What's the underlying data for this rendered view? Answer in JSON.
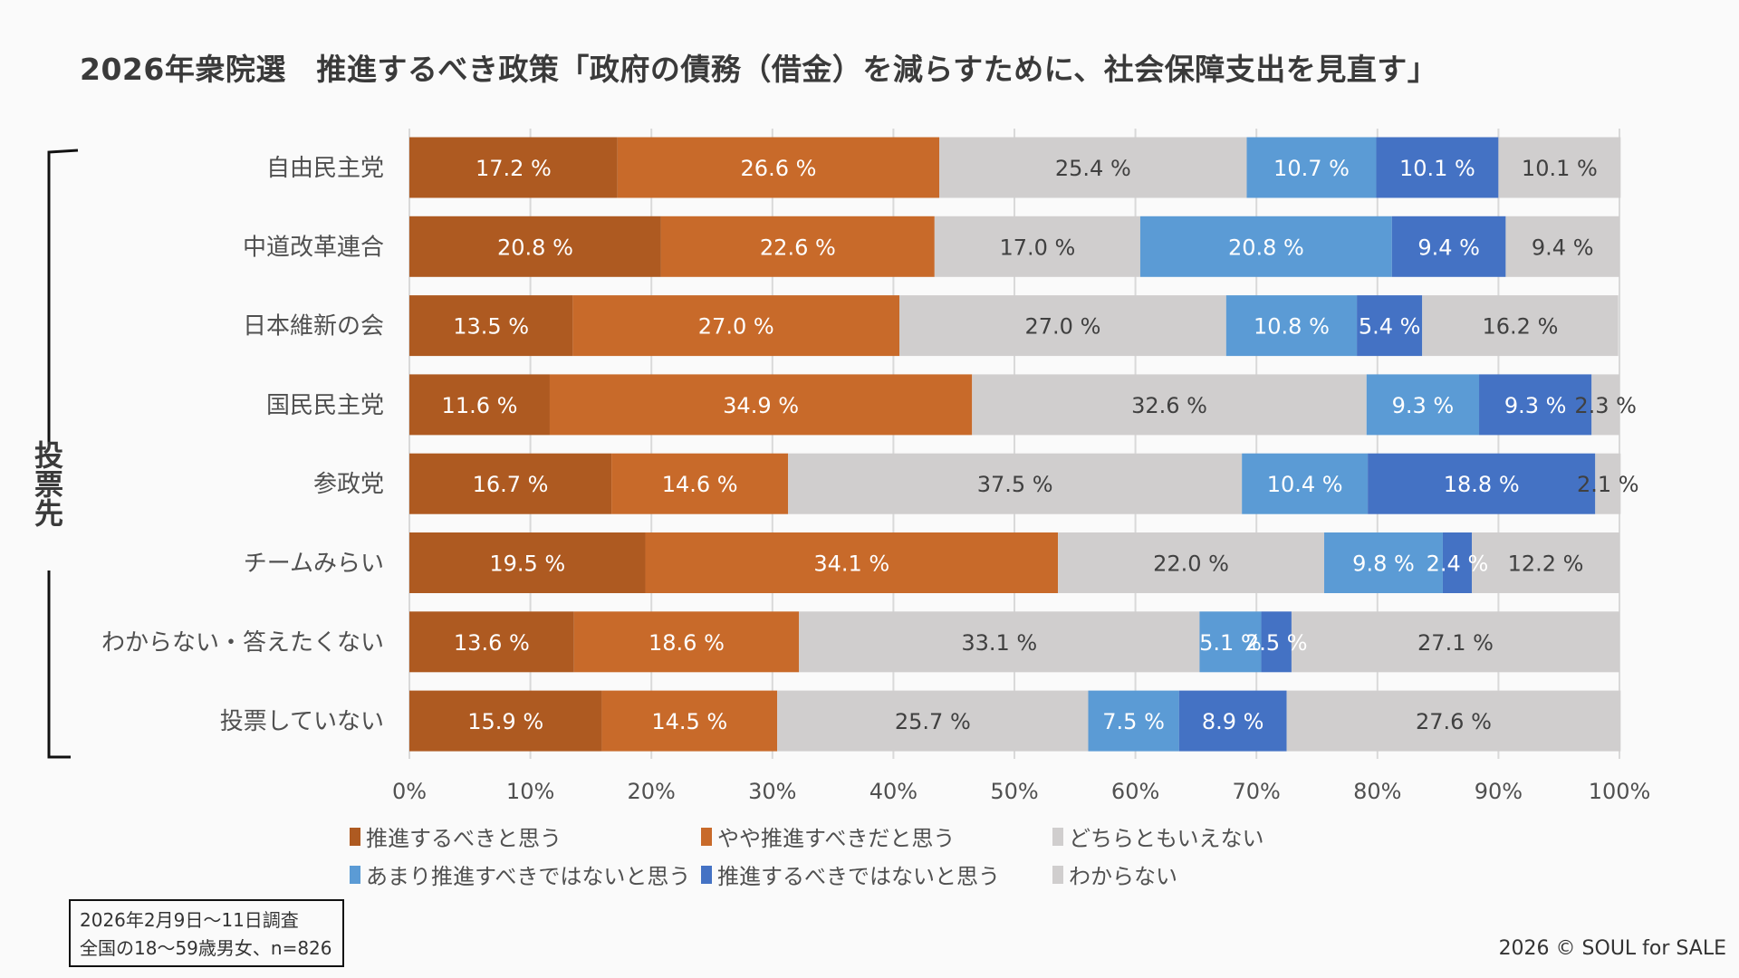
{
  "title": "2026年衆院選　推進するべき政策「政府の債務（借金）を減らすために、社会保障支出を見直す」",
  "group_label": "投票先",
  "note": {
    "line1": "2026年2月9日〜11日調査",
    "line2": "全国の18〜59歳男女、n=826"
  },
  "credit": "2026 © SOUL for SALE",
  "chart_data": {
    "type": "bar",
    "orientation": "horizontal",
    "stacked": "percent",
    "title": "2026年衆院選　推進するべき政策「政府の債務（借金）を減らすために、社会保障支出を見直す」",
    "xlabel": "",
    "ylabel": "投票先",
    "xlim": [
      0,
      100
    ],
    "xticks": [
      "0%",
      "10%",
      "20%",
      "30%",
      "40%",
      "50%",
      "60%",
      "70%",
      "80%",
      "90%",
      "100%"
    ],
    "grid": true,
    "legend_position": "bottom",
    "categories": [
      "自由民主党",
      "中道改革連合",
      "日本維新の会",
      "国民民主党",
      "参政党",
      "チームみらい",
      "わからない・答えたくない",
      "投票していない"
    ],
    "series": [
      {
        "name": "推進するべきと思う",
        "color": "#AE5A21",
        "label_color": "#ffffff",
        "values": [
          17.2,
          20.8,
          13.5,
          11.6,
          16.7,
          19.5,
          13.6,
          15.9
        ]
      },
      {
        "name": "やや推進すべきだと思う",
        "color": "#C86A2A",
        "label_color": "#ffffff",
        "values": [
          26.6,
          22.6,
          27.0,
          34.9,
          14.6,
          34.1,
          18.6,
          14.5
        ]
      },
      {
        "name": "どちらともいえない",
        "color": "#D0CECE",
        "label_color": "#404040",
        "values": [
          25.4,
          17.0,
          27.0,
          32.6,
          37.5,
          22.0,
          33.1,
          25.7
        ]
      },
      {
        "name": "あまり推進すべきではないと思う",
        "color": "#5B9BD5",
        "label_color": "#ffffff",
        "values": [
          10.7,
          20.8,
          10.8,
          9.3,
          10.4,
          9.8,
          5.1,
          7.5
        ]
      },
      {
        "name": "推進するべきではないと思う",
        "color": "#4472C4",
        "label_color": "#ffffff",
        "values": [
          10.1,
          9.4,
          5.4,
          9.3,
          18.8,
          2.4,
          2.5,
          8.9
        ]
      },
      {
        "name": "わからない",
        "color": "#D0CECE",
        "label_color": "#404040",
        "values": [
          10.1,
          9.4,
          16.2,
          2.3,
          2.1,
          12.2,
          27.1,
          27.6
        ]
      }
    ],
    "value_suffix": " %"
  }
}
